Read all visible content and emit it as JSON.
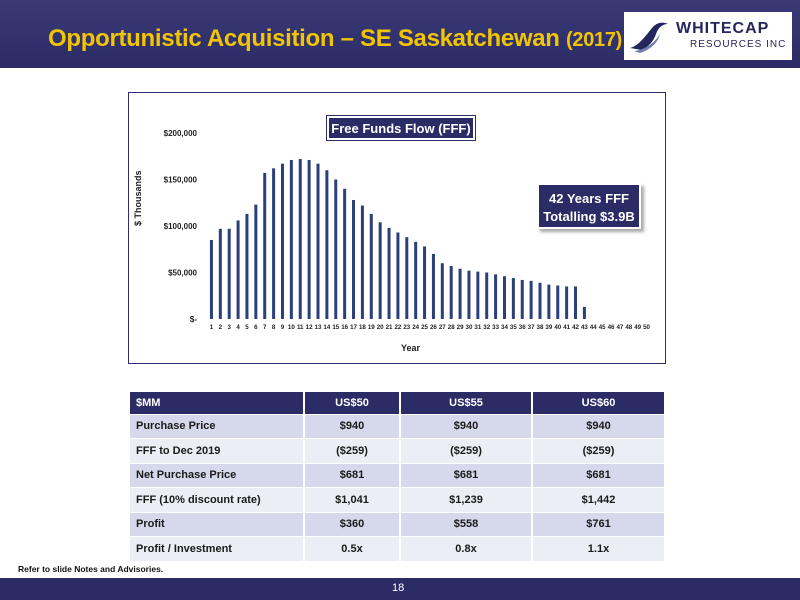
{
  "header": {
    "title_main": "Opportunistic Acquisition – SE Saskatchewan",
    "title_year": "(2017)",
    "logo_name": "WHITECAP",
    "logo_sub": "RESOURCES INC"
  },
  "chart_data": {
    "type": "bar",
    "title": "Free Funds Flow (FFF)",
    "xlabel": "Year",
    "ylabel": "$ Thousands",
    "ylim": [
      0,
      200000
    ],
    "ytick_labels": [
      "$-",
      "$50,000",
      "$100,000",
      "$150,000",
      "$200,000"
    ],
    "ytick_values": [
      0,
      50000,
      100000,
      150000,
      200000
    ],
    "categories": [
      "1",
      "2",
      "3",
      "4",
      "5",
      "6",
      "7",
      "8",
      "9",
      "10",
      "11",
      "12",
      "13",
      "14",
      "15",
      "16",
      "17",
      "18",
      "19",
      "20",
      "21",
      "22",
      "23",
      "24",
      "25",
      "26",
      "27",
      "28",
      "29",
      "30",
      "31",
      "32",
      "33",
      "34",
      "35",
      "36",
      "37",
      "38",
      "39",
      "40",
      "41",
      "42",
      "43",
      "44",
      "45",
      "46",
      "47",
      "48",
      "49",
      "50"
    ],
    "values": [
      85000,
      97000,
      97000,
      106000,
      113000,
      123000,
      157000,
      162000,
      167000,
      171000,
      172000,
      171000,
      167000,
      160000,
      150000,
      140000,
      128000,
      122000,
      113000,
      104000,
      98000,
      93000,
      88000,
      83000,
      78000,
      70000,
      60000,
      57000,
      54000,
      52000,
      51000,
      50000,
      48000,
      46000,
      44000,
      42000,
      41000,
      39000,
      37000,
      36000,
      35000,
      35000,
      13000,
      0,
      0,
      0,
      0,
      0,
      0,
      0
    ],
    "bar_color": "#2b3f78",
    "grid": false,
    "callout_line1": "42 Years FFF",
    "callout_line2": "Totalling $3.9B"
  },
  "table": {
    "headers": [
      "$MM",
      "US$50",
      "US$55",
      "US$60"
    ],
    "rows": [
      [
        "Purchase Price",
        "$940",
        "$940",
        "$940"
      ],
      [
        "FFF to Dec 2019",
        "($259)",
        "($259)",
        "($259)"
      ],
      [
        "Net Purchase Price",
        "$681",
        "$681",
        "$681"
      ],
      [
        "FFF (10% discount rate)",
        "$1,041",
        "$1,239",
        "$1,442"
      ],
      [
        "Profit",
        "$360",
        "$558",
        "$761"
      ],
      [
        "Profit / Investment",
        "0.5x",
        "0.8x",
        "1.1x"
      ]
    ]
  },
  "footnote": "Refer to slide Notes and Advisories.",
  "page_number": "18",
  "colors": {
    "navy": "#2b2b66",
    "title_yellow": "#f2c500",
    "row_dark": "#d6d9ec",
    "row_light": "#eceef6"
  }
}
